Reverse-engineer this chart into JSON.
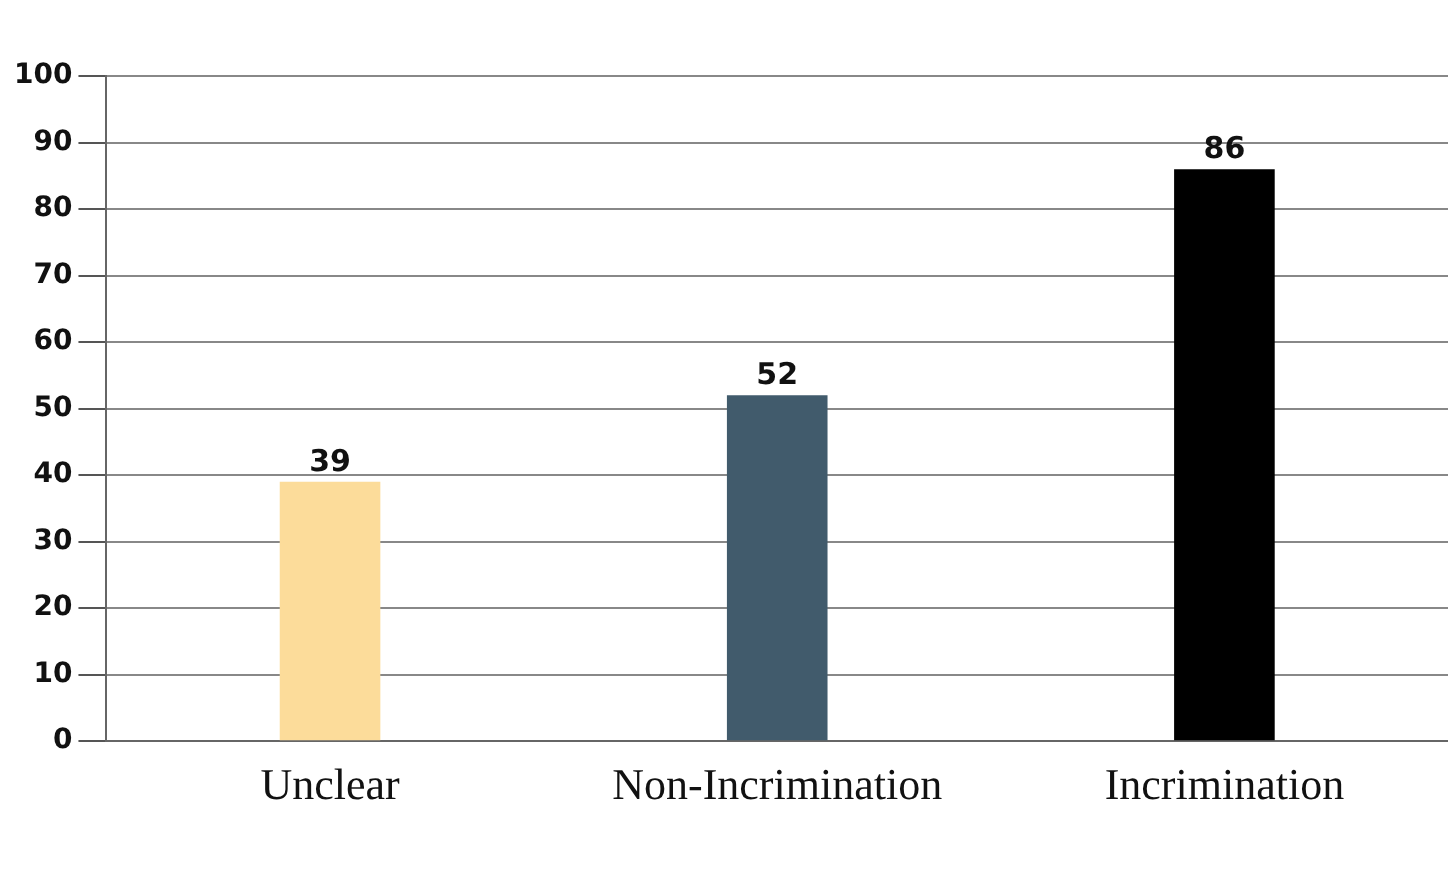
{
  "chart_data": {
    "type": "bar",
    "categories": [
      "Unclear",
      "Non-Incrimination",
      "Incrimination"
    ],
    "values": [
      39,
      52,
      86
    ],
    "colors": [
      "#fcdc9a",
      "#415b6c",
      "#000000"
    ],
    "ylim": [
      0,
      100
    ],
    "yticks": [
      0,
      10,
      20,
      30,
      40,
      50,
      60,
      70,
      80,
      90,
      100
    ],
    "grid": "y",
    "data_labels": true,
    "legend": false
  }
}
